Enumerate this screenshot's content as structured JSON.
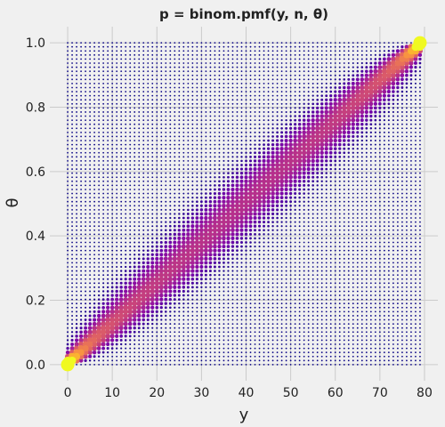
{
  "chart_data": {
    "type": "scatter",
    "title": "p = binom.pmf(y, n, θ)",
    "xlabel": "y",
    "ylabel": "θ",
    "xlim": [
      -4,
      83
    ],
    "ylim": [
      -0.05,
      1.05
    ],
    "xticks": [
      0,
      10,
      20,
      30,
      40,
      50,
      60,
      70,
      80
    ],
    "yticks": [
      0.0,
      0.2,
      0.4,
      0.6,
      0.8,
      1.0
    ],
    "xtick_labels": [
      "0",
      "10",
      "20",
      "30",
      "40",
      "50",
      "60",
      "70",
      "80"
    ],
    "ytick_labels": [
      "0.0",
      "0.2",
      "0.4",
      "0.6",
      "0.8",
      "1.0"
    ],
    "grid": true,
    "n": 79,
    "y_values": {
      "start": 0,
      "stop": 79,
      "step": 1
    },
    "theta_values": {
      "start": 0.0,
      "stop": 1.0,
      "count": 80
    },
    "marker_size_encodes": "p",
    "marker_color_encodes": "p",
    "colormap": "plasma"
  },
  "style": {
    "background": "#f0f0f0",
    "grid_color": "#cbcbcb",
    "text_color": "#222222"
  }
}
